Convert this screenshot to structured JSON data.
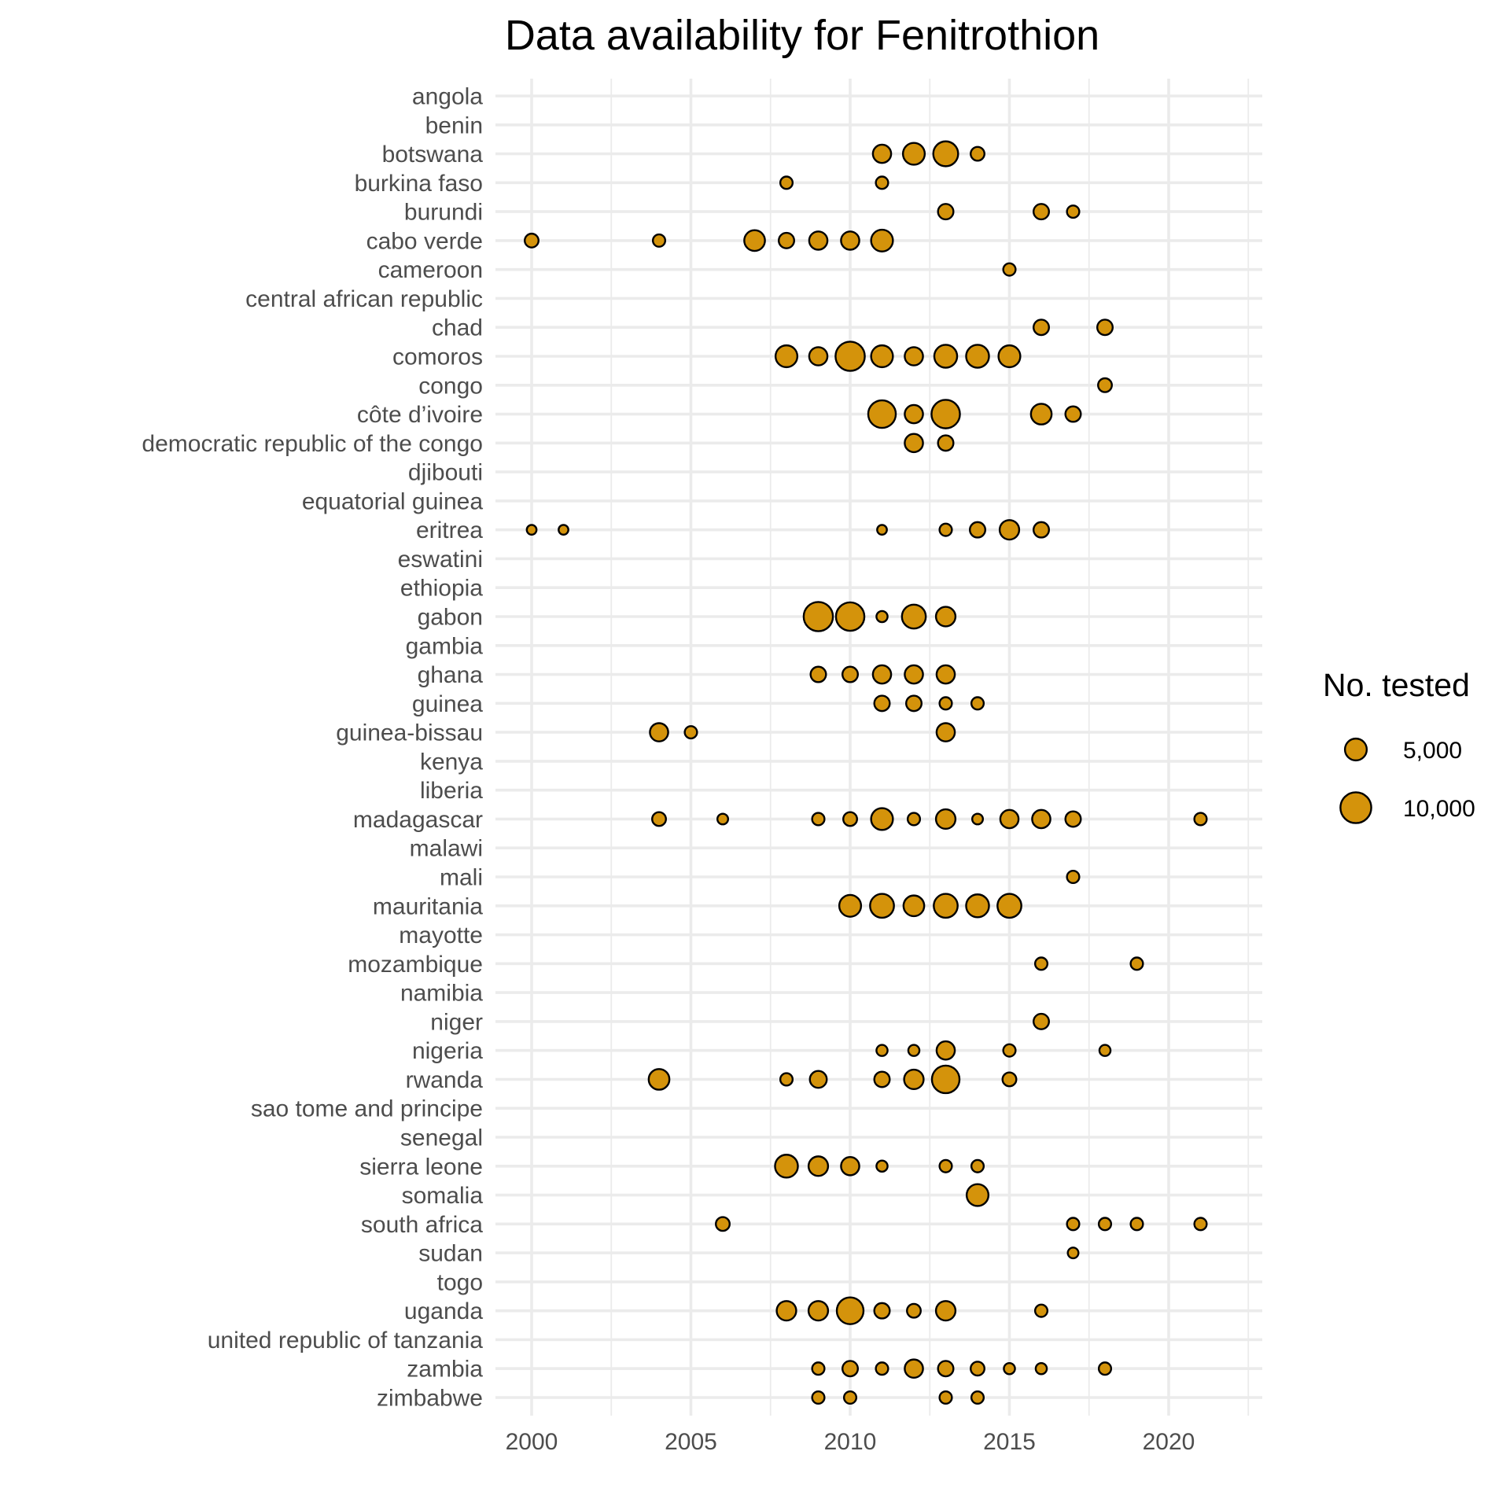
{
  "chart_data": {
    "type": "scatter",
    "title": "Data availability for Fenitrothion",
    "xlabel": "",
    "ylabel": "",
    "xlim": [
      1998.9,
      2022.6
    ],
    "x_ticks": [
      2000,
      2005,
      2010,
      2015,
      2020
    ],
    "x_tick_labels": [
      "2000",
      "2005",
      "2010",
      "2015",
      "2020"
    ],
    "grid": true,
    "point_color": "#D4930B",
    "point_outline": "#000000",
    "categories": [
      "angola",
      "benin",
      "botswana",
      "burkina faso",
      "burundi",
      "cabo verde",
      "cameroon",
      "central african republic",
      "chad",
      "comoros",
      "congo",
      "côte d’ivoire",
      "democratic republic of the congo",
      "djibouti",
      "equatorial guinea",
      "eritrea",
      "eswatini",
      "ethiopia",
      "gabon",
      "gambia",
      "ghana",
      "guinea",
      "guinea-bissau",
      "kenya",
      "liberia",
      "madagascar",
      "malawi",
      "mali",
      "mauritania",
      "mayotte",
      "mozambique",
      "namibia",
      "niger",
      "nigeria",
      "rwanda",
      "sao tome and principe",
      "senegal",
      "sierra leone",
      "somalia",
      "south africa",
      "sudan",
      "togo",
      "uganda",
      "united republic of tanzania",
      "zambia",
      "zimbabwe"
    ],
    "size_legend": {
      "title": "No. tested",
      "entries": [
        {
          "label": "5,000",
          "value": 5000
        },
        {
          "label": "10,000",
          "value": 10000
        }
      ]
    },
    "points": [
      {
        "country": "botswana",
        "year": 2011,
        "n": 3500
      },
      {
        "country": "botswana",
        "year": 2012,
        "n": 5000
      },
      {
        "country": "botswana",
        "year": 2013,
        "n": 6500
      },
      {
        "country": "botswana",
        "year": 2014,
        "n": 2000
      },
      {
        "country": "burkina faso",
        "year": 2008,
        "n": 1600
      },
      {
        "country": "burkina faso",
        "year": 2011,
        "n": 1600
      },
      {
        "country": "burundi",
        "year": 2013,
        "n": 2500
      },
      {
        "country": "burundi",
        "year": 2016,
        "n": 2500
      },
      {
        "country": "burundi",
        "year": 2017,
        "n": 1600
      },
      {
        "country": "cabo verde",
        "year": 2000,
        "n": 2000
      },
      {
        "country": "cabo verde",
        "year": 2004,
        "n": 1600
      },
      {
        "country": "cabo verde",
        "year": 2007,
        "n": 4500
      },
      {
        "country": "cabo verde",
        "year": 2008,
        "n": 2500
      },
      {
        "country": "cabo verde",
        "year": 2009,
        "n": 3500
      },
      {
        "country": "cabo verde",
        "year": 2010,
        "n": 3500
      },
      {
        "country": "cabo verde",
        "year": 2011,
        "n": 5000
      },
      {
        "country": "cameroon",
        "year": 2015,
        "n": 1600
      },
      {
        "country": "chad",
        "year": 2016,
        "n": 2500
      },
      {
        "country": "chad",
        "year": 2018,
        "n": 2500
      },
      {
        "country": "comoros",
        "year": 2008,
        "n": 5000
      },
      {
        "country": "comoros",
        "year": 2009,
        "n": 3500
      },
      {
        "country": "comoros",
        "year": 2010,
        "n": 9000
      },
      {
        "country": "comoros",
        "year": 2011,
        "n": 5000
      },
      {
        "country": "comoros",
        "year": 2012,
        "n": 3500
      },
      {
        "country": "comoros",
        "year": 2013,
        "n": 5500
      },
      {
        "country": "comoros",
        "year": 2014,
        "n": 5500
      },
      {
        "country": "comoros",
        "year": 2015,
        "n": 5000
      },
      {
        "country": "congo",
        "year": 2018,
        "n": 2000
      },
      {
        "country": "côte d’ivoire",
        "year": 2011,
        "n": 8000
      },
      {
        "country": "côte d’ivoire",
        "year": 2012,
        "n": 3500
      },
      {
        "country": "côte d’ivoire",
        "year": 2013,
        "n": 8500
      },
      {
        "country": "côte d’ivoire",
        "year": 2016,
        "n": 4500
      },
      {
        "country": "côte d’ivoire",
        "year": 2017,
        "n": 2500
      },
      {
        "country": "democratic republic of the congo",
        "year": 2012,
        "n": 3500
      },
      {
        "country": "democratic republic of the congo",
        "year": 2013,
        "n": 2500
      },
      {
        "country": "eritrea",
        "year": 2000,
        "n": 1000
      },
      {
        "country": "eritrea",
        "year": 2001,
        "n": 1000
      },
      {
        "country": "eritrea",
        "year": 2011,
        "n": 1000
      },
      {
        "country": "eritrea",
        "year": 2013,
        "n": 1600
      },
      {
        "country": "eritrea",
        "year": 2014,
        "n": 2500
      },
      {
        "country": "eritrea",
        "year": 2015,
        "n": 4000
      },
      {
        "country": "eritrea",
        "year": 2016,
        "n": 2500
      },
      {
        "country": "gabon",
        "year": 2009,
        "n": 9000
      },
      {
        "country": "gabon",
        "year": 2010,
        "n": 8500
      },
      {
        "country": "gabon",
        "year": 2011,
        "n": 1300
      },
      {
        "country": "gabon",
        "year": 2012,
        "n": 6000
      },
      {
        "country": "gabon",
        "year": 2013,
        "n": 4000
      },
      {
        "country": "ghana",
        "year": 2009,
        "n": 2500
      },
      {
        "country": "ghana",
        "year": 2010,
        "n": 2500
      },
      {
        "country": "ghana",
        "year": 2011,
        "n": 3500
      },
      {
        "country": "ghana",
        "year": 2012,
        "n": 3500
      },
      {
        "country": "ghana",
        "year": 2013,
        "n": 3500
      },
      {
        "country": "guinea",
        "year": 2011,
        "n": 2500
      },
      {
        "country": "guinea",
        "year": 2012,
        "n": 2500
      },
      {
        "country": "guinea",
        "year": 2013,
        "n": 1600
      },
      {
        "country": "guinea",
        "year": 2014,
        "n": 1600
      },
      {
        "country": "guinea-bissau",
        "year": 2004,
        "n": 3500
      },
      {
        "country": "guinea-bissau",
        "year": 2005,
        "n": 1600
      },
      {
        "country": "guinea-bissau",
        "year": 2013,
        "n": 3500
      },
      {
        "country": "madagascar",
        "year": 2004,
        "n": 2000
      },
      {
        "country": "madagascar",
        "year": 2006,
        "n": 1200
      },
      {
        "country": "madagascar",
        "year": 2009,
        "n": 1600
      },
      {
        "country": "madagascar",
        "year": 2010,
        "n": 2000
      },
      {
        "country": "madagascar",
        "year": 2011,
        "n": 5000
      },
      {
        "country": "madagascar",
        "year": 2012,
        "n": 1600
      },
      {
        "country": "madagascar",
        "year": 2013,
        "n": 4000
      },
      {
        "country": "madagascar",
        "year": 2014,
        "n": 1200
      },
      {
        "country": "madagascar",
        "year": 2015,
        "n": 3500
      },
      {
        "country": "madagascar",
        "year": 2016,
        "n": 3500
      },
      {
        "country": "madagascar",
        "year": 2017,
        "n": 2500
      },
      {
        "country": "madagascar",
        "year": 2021,
        "n": 1600
      },
      {
        "country": "mali",
        "year": 2017,
        "n": 1600
      },
      {
        "country": "mauritania",
        "year": 2010,
        "n": 5000
      },
      {
        "country": "mauritania",
        "year": 2011,
        "n": 6000
      },
      {
        "country": "mauritania",
        "year": 2012,
        "n": 4500
      },
      {
        "country": "mauritania",
        "year": 2013,
        "n": 6000
      },
      {
        "country": "mauritania",
        "year": 2014,
        "n": 5500
      },
      {
        "country": "mauritania",
        "year": 2015,
        "n": 6000
      },
      {
        "country": "mozambique",
        "year": 2016,
        "n": 1600
      },
      {
        "country": "mozambique",
        "year": 2019,
        "n": 1600
      },
      {
        "country": "niger",
        "year": 2016,
        "n": 2500
      },
      {
        "country": "nigeria",
        "year": 2011,
        "n": 1300
      },
      {
        "country": "nigeria",
        "year": 2012,
        "n": 1300
      },
      {
        "country": "nigeria",
        "year": 2013,
        "n": 3500
      },
      {
        "country": "nigeria",
        "year": 2015,
        "n": 1600
      },
      {
        "country": "nigeria",
        "year": 2018,
        "n": 1300
      },
      {
        "country": "rwanda",
        "year": 2004,
        "n": 4500
      },
      {
        "country": "rwanda",
        "year": 2008,
        "n": 1600
      },
      {
        "country": "rwanda",
        "year": 2009,
        "n": 3000
      },
      {
        "country": "rwanda",
        "year": 2011,
        "n": 2500
      },
      {
        "country": "rwanda",
        "year": 2012,
        "n": 4000
      },
      {
        "country": "rwanda",
        "year": 2013,
        "n": 8000
      },
      {
        "country": "rwanda",
        "year": 2015,
        "n": 2000
      },
      {
        "country": "sierra leone",
        "year": 2008,
        "n": 5500
      },
      {
        "country": "sierra leone",
        "year": 2009,
        "n": 4000
      },
      {
        "country": "sierra leone",
        "year": 2010,
        "n": 3500
      },
      {
        "country": "sierra leone",
        "year": 2011,
        "n": 1300
      },
      {
        "country": "sierra leone",
        "year": 2013,
        "n": 1600
      },
      {
        "country": "sierra leone",
        "year": 2014,
        "n": 1600
      },
      {
        "country": "somalia",
        "year": 2014,
        "n": 5000
      },
      {
        "country": "south africa",
        "year": 2006,
        "n": 2000
      },
      {
        "country": "south africa",
        "year": 2017,
        "n": 1600
      },
      {
        "country": "south africa",
        "year": 2018,
        "n": 1600
      },
      {
        "country": "south africa",
        "year": 2019,
        "n": 1600
      },
      {
        "country": "south africa",
        "year": 2021,
        "n": 1600
      },
      {
        "country": "sudan",
        "year": 2017,
        "n": 1200
      },
      {
        "country": "uganda",
        "year": 2008,
        "n": 4000
      },
      {
        "country": "uganda",
        "year": 2009,
        "n": 4000
      },
      {
        "country": "uganda",
        "year": 2010,
        "n": 7500
      },
      {
        "country": "uganda",
        "year": 2011,
        "n": 2500
      },
      {
        "country": "uganda",
        "year": 2012,
        "n": 2000
      },
      {
        "country": "uganda",
        "year": 2013,
        "n": 4000
      },
      {
        "country": "uganda",
        "year": 2016,
        "n": 1600
      },
      {
        "country": "zambia",
        "year": 2009,
        "n": 1600
      },
      {
        "country": "zambia",
        "year": 2010,
        "n": 2500
      },
      {
        "country": "zambia",
        "year": 2011,
        "n": 1600
      },
      {
        "country": "zambia",
        "year": 2012,
        "n": 3500
      },
      {
        "country": "zambia",
        "year": 2013,
        "n": 2500
      },
      {
        "country": "zambia",
        "year": 2014,
        "n": 2000
      },
      {
        "country": "zambia",
        "year": 2015,
        "n": 1300
      },
      {
        "country": "zambia",
        "year": 2016,
        "n": 1300
      },
      {
        "country": "zambia",
        "year": 2018,
        "n": 1600
      },
      {
        "country": "zimbabwe",
        "year": 2009,
        "n": 1600
      },
      {
        "country": "zimbabwe",
        "year": 2010,
        "n": 1600
      },
      {
        "country": "zimbabwe",
        "year": 2013,
        "n": 1600
      },
      {
        "country": "zimbabwe",
        "year": 2014,
        "n": 1600
      }
    ]
  }
}
